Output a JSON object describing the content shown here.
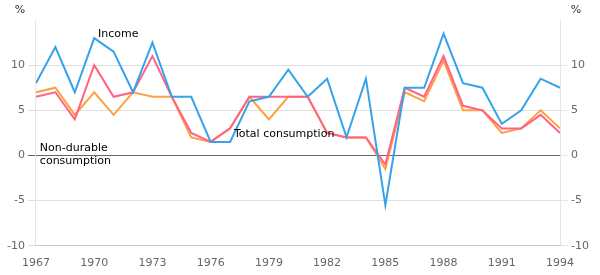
{
  "chart_data": {
    "type": "line",
    "x": [
      1967,
      1968,
      1969,
      1970,
      1971,
      1972,
      1973,
      1974,
      1975,
      1976,
      1977,
      1978,
      1979,
      1980,
      1981,
      1982,
      1983,
      1984,
      1985,
      1986,
      1987,
      1988,
      1989,
      1990,
      1991,
      1992,
      1993,
      1994
    ],
    "series": [
      {
        "name": "Income",
        "values": [
          8.0,
          12.0,
          7.0,
          13.0,
          11.5,
          7.0,
          12.5,
          6.5,
          6.5,
          1.5,
          1.5,
          6.0,
          6.5,
          9.5,
          6.5,
          8.5,
          2.0,
          8.5,
          -5.5,
          7.5,
          7.5,
          13.5,
          8.0,
          7.5,
          3.5,
          5.0,
          8.5,
          7.5
        ]
      },
      {
        "name": "Total consumption",
        "values": [
          6.5,
          7.0,
          4.0,
          10.0,
          6.5,
          7.0,
          11.0,
          6.5,
          2.5,
          1.5,
          3.0,
          6.5,
          6.5,
          6.5,
          6.5,
          2.5,
          2.0,
          2.0,
          -1.0,
          7.5,
          6.5,
          11.0,
          5.5,
          5.0,
          3.0,
          3.0,
          4.5,
          2.5
        ]
      },
      {
        "name": "Non-durable\nconsumption",
        "values": [
          7.0,
          7.5,
          4.5,
          7.0,
          4.5,
          7.0,
          6.5,
          6.5,
          2.0,
          1.5,
          3.0,
          6.5,
          4.0,
          6.5,
          6.5,
          2.5,
          2.0,
          2.0,
          -1.5,
          7.0,
          6.0,
          10.5,
          5.0,
          5.0,
          2.5,
          3.0,
          5.0,
          3.0
        ]
      }
    ],
    "xlim": [
      1967,
      1994
    ],
    "xticks": [
      1967,
      1970,
      1973,
      1976,
      1979,
      1982,
      1985,
      1988,
      1991,
      1994
    ],
    "ylim": [
      -10,
      15
    ],
    "yticks": [
      -10,
      -5,
      0,
      5,
      10
    ],
    "y2lim": [
      -10,
      15
    ],
    "y2ticks": [
      -10,
      -5,
      0,
      5,
      10
    ],
    "ylabel": "%",
    "y2label": "%",
    "annotations": [
      {
        "text": "Income",
        "x": 1970.2,
        "y": 12.8
      },
      {
        "text": "Total consumption",
        "x": 1977.2,
        "y": 1.8
      },
      {
        "text": "Non-durable\nconsumption",
        "x": 1967.2,
        "y": -1.2
      }
    ],
    "grid": "y"
  }
}
